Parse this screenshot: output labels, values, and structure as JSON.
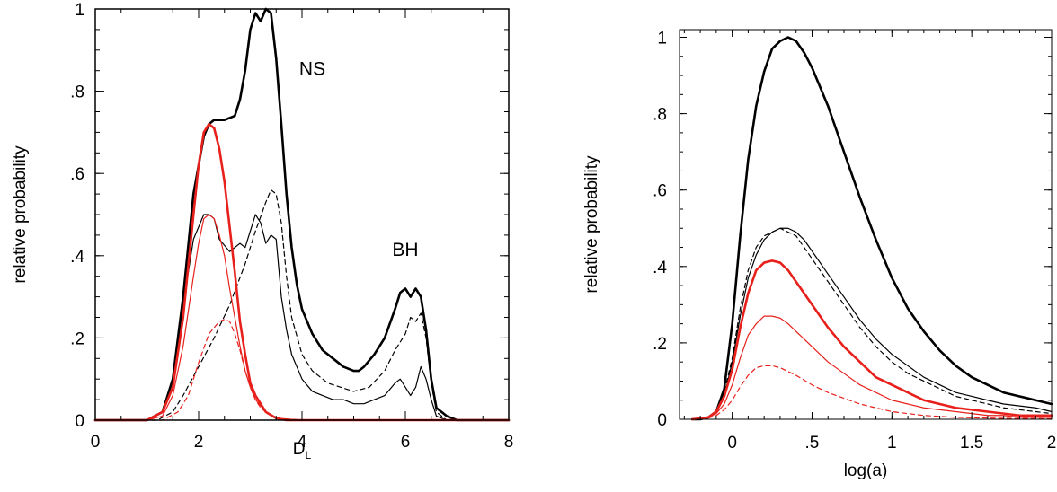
{
  "chart_data": [
    {
      "type": "line",
      "xlabel": "D",
      "xlabel_sub": "L",
      "ylabel": "relative probability",
      "xlim": [
        0,
        8
      ],
      "ylim": [
        0,
        1
      ],
      "x_ticks": [
        0,
        2,
        4,
        6,
        8
      ],
      "x_tick_labels": [
        "0",
        "2",
        "4",
        "6",
        "8"
      ],
      "y_ticks": [
        0,
        0.2,
        0.4,
        0.6,
        0.8,
        1
      ],
      "y_tick_labels": [
        "0",
        ".2",
        ".4",
        ".6",
        ".8",
        "1"
      ],
      "grid": false,
      "annotations": [
        {
          "text": "NS",
          "x": 4.2,
          "y": 0.84
        },
        {
          "text": "BH",
          "x": 6.0,
          "y": 0.4
        }
      ],
      "series": [
        {
          "color": "#000000",
          "style": "solid",
          "width": "thick",
          "x": [
            0,
            1.0,
            1.3,
            1.5,
            1.7,
            1.9,
            2.1,
            2.2,
            2.3,
            2.4,
            2.5,
            2.7,
            2.8,
            2.9,
            3.0,
            3.1,
            3.2,
            3.3,
            3.4,
            3.5,
            3.6,
            3.7,
            3.8,
            3.9,
            4.0,
            4.2,
            4.4,
            4.6,
            4.8,
            5.0,
            5.1,
            5.2,
            5.4,
            5.6,
            5.8,
            5.9,
            6.0,
            6.1,
            6.2,
            6.3,
            6.4,
            6.5,
            6.6,
            6.8,
            7.0,
            8.0
          ],
          "y": [
            0,
            0,
            0.02,
            0.1,
            0.3,
            0.55,
            0.69,
            0.72,
            0.73,
            0.73,
            0.73,
            0.74,
            0.78,
            0.85,
            0.95,
            0.99,
            0.97,
            1.0,
            0.99,
            0.88,
            0.72,
            0.55,
            0.42,
            0.33,
            0.27,
            0.21,
            0.17,
            0.15,
            0.13,
            0.12,
            0.12,
            0.13,
            0.16,
            0.2,
            0.27,
            0.31,
            0.32,
            0.3,
            0.32,
            0.3,
            0.22,
            0.1,
            0.03,
            0.01,
            0,
            0
          ]
        },
        {
          "color": "#000000",
          "style": "solid",
          "width": "thin",
          "x": [
            0,
            1.0,
            1.3,
            1.5,
            1.7,
            1.9,
            2.1,
            2.2,
            2.3,
            2.4,
            2.6,
            2.8,
            2.9,
            3.0,
            3.1,
            3.2,
            3.3,
            3.4,
            3.5,
            3.6,
            3.7,
            3.8,
            4.0,
            4.2,
            4.4,
            4.6,
            4.8,
            5.0,
            5.2,
            5.4,
            5.6,
            5.8,
            5.9,
            6.0,
            6.1,
            6.2,
            6.3,
            6.4,
            6.5,
            6.6,
            6.8,
            8.0
          ],
          "y": [
            0,
            0,
            0.02,
            0.1,
            0.28,
            0.44,
            0.5,
            0.5,
            0.49,
            0.44,
            0.41,
            0.43,
            0.42,
            0.46,
            0.5,
            0.48,
            0.43,
            0.45,
            0.44,
            0.3,
            0.22,
            0.16,
            0.1,
            0.07,
            0.06,
            0.05,
            0.05,
            0.04,
            0.04,
            0.05,
            0.06,
            0.09,
            0.1,
            0.08,
            0.06,
            0.08,
            0.13,
            0.1,
            0.05,
            0.01,
            0,
            0
          ]
        },
        {
          "color": "#000000",
          "style": "dashed",
          "width": "thin",
          "x": [
            0,
            1.2,
            1.5,
            1.7,
            2.0,
            2.3,
            2.6,
            2.9,
            3.1,
            3.3,
            3.4,
            3.5,
            3.6,
            3.7,
            3.8,
            4.0,
            4.2,
            4.5,
            5.0,
            5.3,
            5.6,
            5.8,
            6.0,
            6.1,
            6.2,
            6.3,
            6.4,
            6.5,
            6.6,
            6.8,
            8.0
          ],
          "y": [
            0,
            0,
            0.02,
            0.06,
            0.13,
            0.2,
            0.28,
            0.38,
            0.46,
            0.53,
            0.56,
            0.55,
            0.48,
            0.35,
            0.25,
            0.16,
            0.12,
            0.09,
            0.07,
            0.08,
            0.12,
            0.17,
            0.21,
            0.25,
            0.24,
            0.26,
            0.2,
            0.09,
            0.02,
            0,
            0
          ]
        },
        {
          "color": "#e8201c",
          "style": "solid",
          "width": "thick",
          "x": [
            0,
            1.0,
            1.3,
            1.5,
            1.7,
            1.9,
            2.0,
            2.1,
            2.2,
            2.3,
            2.4,
            2.5,
            2.6,
            2.7,
            2.8,
            2.9,
            3.0,
            3.1,
            3.2,
            3.3,
            3.5,
            3.7,
            4.0,
            8.0
          ],
          "y": [
            0,
            0,
            0.02,
            0.08,
            0.25,
            0.5,
            0.62,
            0.7,
            0.72,
            0.71,
            0.66,
            0.58,
            0.47,
            0.36,
            0.24,
            0.16,
            0.09,
            0.06,
            0.04,
            0.02,
            0.005,
            0,
            0,
            0
          ]
        },
        {
          "color": "#e8201c",
          "style": "solid",
          "width": "thin",
          "x": [
            0,
            1.0,
            1.3,
            1.5,
            1.7,
            1.9,
            2.0,
            2.1,
            2.2,
            2.3,
            2.4,
            2.5,
            2.6,
            2.7,
            2.8,
            2.9,
            3.0,
            3.1,
            3.3,
            3.5,
            4.0,
            8.0
          ],
          "y": [
            0,
            0,
            0.01,
            0.06,
            0.18,
            0.35,
            0.43,
            0.49,
            0.5,
            0.49,
            0.45,
            0.4,
            0.32,
            0.25,
            0.18,
            0.12,
            0.08,
            0.05,
            0.02,
            0.005,
            0,
            0
          ]
        },
        {
          "color": "#e8201c",
          "style": "dashed",
          "width": "thin",
          "x": [
            0,
            1.3,
            1.6,
            1.8,
            2.0,
            2.2,
            2.4,
            2.5,
            2.6,
            2.7,
            2.8,
            2.9,
            3.0,
            3.1,
            3.2,
            3.3,
            3.5,
            4.0,
            8.0
          ],
          "y": [
            0,
            0,
            0.02,
            0.06,
            0.14,
            0.21,
            0.24,
            0.245,
            0.24,
            0.21,
            0.17,
            0.12,
            0.08,
            0.05,
            0.03,
            0.02,
            0.005,
            0,
            0
          ]
        }
      ]
    },
    {
      "type": "line",
      "xlabel": "log(a)",
      "ylabel": "relative probability",
      "xlim": [
        -0.33,
        2
      ],
      "ylim": [
        0,
        1.02
      ],
      "x_ticks": [
        0,
        0.5,
        1,
        1.5,
        2
      ],
      "x_tick_labels": [
        "0",
        ".5",
        "1",
        "1.5",
        "2"
      ],
      "y_ticks": [
        0,
        0.2,
        0.4,
        0.6,
        0.8,
        1
      ],
      "y_tick_labels": [
        "0",
        ".2",
        ".4",
        ".6",
        ".8",
        "1"
      ],
      "grid": false,
      "series": [
        {
          "color": "#000000",
          "style": "solid",
          "width": "thick",
          "x": [
            -0.25,
            -0.2,
            -0.15,
            -0.1,
            -0.05,
            0,
            0.05,
            0.1,
            0.15,
            0.2,
            0.25,
            0.3,
            0.35,
            0.4,
            0.45,
            0.5,
            0.6,
            0.7,
            0.8,
            0.9,
            1.0,
            1.1,
            1.2,
            1.3,
            1.4,
            1.5,
            1.6,
            1.7,
            1.8,
            1.9,
            2.0
          ],
          "y": [
            0,
            0,
            0.005,
            0.02,
            0.08,
            0.25,
            0.48,
            0.68,
            0.82,
            0.91,
            0.97,
            0.99,
            1.0,
            0.99,
            0.96,
            0.92,
            0.82,
            0.7,
            0.58,
            0.47,
            0.37,
            0.29,
            0.23,
            0.18,
            0.14,
            0.11,
            0.09,
            0.07,
            0.06,
            0.05,
            0.04
          ]
        },
        {
          "color": "#000000",
          "style": "solid",
          "width": "thin",
          "x": [
            -0.25,
            -0.15,
            -0.1,
            -0.05,
            0,
            0.05,
            0.1,
            0.15,
            0.2,
            0.25,
            0.3,
            0.35,
            0.4,
            0.45,
            0.5,
            0.6,
            0.7,
            0.8,
            0.9,
            1.0,
            1.1,
            1.2,
            1.3,
            1.4,
            1.5,
            1.6,
            1.7,
            1.8,
            1.9,
            2.0
          ],
          "y": [
            0,
            0.005,
            0.02,
            0.06,
            0.15,
            0.27,
            0.37,
            0.43,
            0.47,
            0.49,
            0.5,
            0.5,
            0.49,
            0.47,
            0.44,
            0.38,
            0.32,
            0.26,
            0.21,
            0.17,
            0.14,
            0.11,
            0.09,
            0.07,
            0.06,
            0.05,
            0.04,
            0.035,
            0.03,
            0.02
          ]
        },
        {
          "color": "#000000",
          "style": "dashed",
          "width": "thin",
          "x": [
            -0.25,
            -0.15,
            -0.1,
            -0.05,
            0,
            0.05,
            0.1,
            0.15,
            0.2,
            0.25,
            0.3,
            0.35,
            0.4,
            0.45,
            0.5,
            0.6,
            0.7,
            0.8,
            0.9,
            1.0,
            1.1,
            1.2,
            1.3,
            1.4,
            1.5,
            1.6,
            1.7,
            1.8,
            1.9,
            2.0
          ],
          "y": [
            0,
            0.005,
            0.02,
            0.07,
            0.16,
            0.29,
            0.39,
            0.45,
            0.48,
            0.49,
            0.5,
            0.49,
            0.48,
            0.45,
            0.42,
            0.36,
            0.3,
            0.24,
            0.19,
            0.15,
            0.12,
            0.1,
            0.08,
            0.06,
            0.05,
            0.04,
            0.03,
            0.025,
            0.02,
            0.015
          ]
        },
        {
          "color": "#e8201c",
          "style": "solid",
          "width": "thick",
          "x": [
            -0.25,
            -0.15,
            -0.1,
            -0.05,
            0,
            0.05,
            0.1,
            0.15,
            0.2,
            0.25,
            0.3,
            0.35,
            0.4,
            0.5,
            0.6,
            0.7,
            0.8,
            0.9,
            1.0,
            1.1,
            1.2,
            1.3,
            1.4,
            1.5,
            1.6,
            1.7,
            1.8,
            1.9,
            2.0
          ],
          "y": [
            0,
            0.005,
            0.02,
            0.06,
            0.13,
            0.24,
            0.33,
            0.39,
            0.41,
            0.415,
            0.41,
            0.39,
            0.36,
            0.3,
            0.24,
            0.19,
            0.15,
            0.11,
            0.09,
            0.07,
            0.05,
            0.04,
            0.03,
            0.025,
            0.02,
            0.015,
            0.01,
            0.01,
            0.01
          ]
        },
        {
          "color": "#e8201c",
          "style": "solid",
          "width": "thin",
          "x": [
            -0.25,
            -0.15,
            -0.1,
            -0.05,
            0,
            0.05,
            0.1,
            0.15,
            0.2,
            0.25,
            0.3,
            0.35,
            0.4,
            0.5,
            0.6,
            0.7,
            0.8,
            0.9,
            1.0,
            1.1,
            1.2,
            1.3,
            1.4,
            1.5,
            1.6,
            1.7,
            1.8,
            1.9,
            2.0
          ],
          "y": [
            0,
            0.005,
            0.015,
            0.04,
            0.09,
            0.16,
            0.22,
            0.25,
            0.27,
            0.27,
            0.265,
            0.25,
            0.23,
            0.19,
            0.15,
            0.12,
            0.09,
            0.07,
            0.05,
            0.04,
            0.03,
            0.025,
            0.02,
            0.015,
            0.01,
            0.01,
            0.005,
            0.005,
            0.005
          ]
        },
        {
          "color": "#e8201c",
          "style": "dashed",
          "width": "thin",
          "x": [
            -0.25,
            -0.15,
            -0.1,
            -0.05,
            0,
            0.05,
            0.1,
            0.15,
            0.2,
            0.25,
            0.3,
            0.35,
            0.4,
            0.5,
            0.6,
            0.7,
            0.8,
            0.9,
            1.0,
            1.2,
            1.4,
            1.6,
            1.8,
            2.0
          ],
          "y": [
            0,
            0.003,
            0.01,
            0.025,
            0.05,
            0.085,
            0.115,
            0.135,
            0.14,
            0.14,
            0.135,
            0.125,
            0.115,
            0.09,
            0.07,
            0.055,
            0.04,
            0.03,
            0.02,
            0.01,
            0.005,
            0.003,
            0.002,
            0.001
          ]
        }
      ]
    }
  ]
}
